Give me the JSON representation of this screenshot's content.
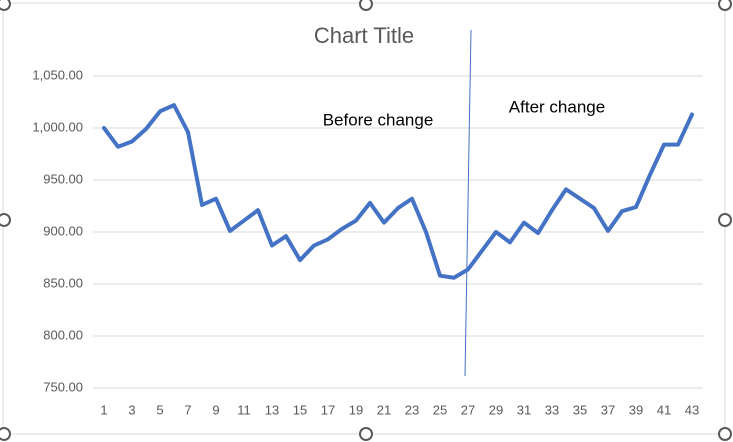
{
  "chart_data": {
    "type": "line",
    "title": "Chart Title",
    "categories": [
      1,
      null,
      3,
      null,
      5,
      null,
      7,
      null,
      9,
      null,
      11,
      null,
      13,
      null,
      15,
      null,
      17,
      null,
      19,
      null,
      21,
      null,
      23,
      null,
      25,
      null,
      27,
      null,
      29,
      null,
      31,
      null,
      33,
      null,
      35,
      null,
      37,
      null,
      39,
      null,
      41,
      null,
      43
    ],
    "series": [
      {
        "color": "#4472c4",
        "values": [
          1000,
          982,
          987,
          999,
          1016,
          1022,
          996,
          926,
          932,
          901,
          911,
          921,
          887,
          896,
          873,
          887,
          893,
          903,
          911,
          928,
          909,
          923,
          932,
          900,
          858,
          856,
          864,
          882,
          900,
          890,
          909,
          899,
          921,
          941,
          932,
          923,
          901,
          920,
          924,
          955,
          984,
          984,
          1013
        ]
      }
    ],
    "ylim": [
      750,
      1050
    ],
    "yticks": [
      {
        "value": 750,
        "label": "750.00"
      },
      {
        "value": 800,
        "label": "800.00"
      },
      {
        "value": 850,
        "label": "850.00"
      },
      {
        "value": 900,
        "label": "900.00"
      },
      {
        "value": 950,
        "label": "950.00"
      },
      {
        "value": 1000,
        "label": "1,000.00"
      },
      {
        "value": 1050,
        "label": "1,050.00"
      }
    ],
    "grid": true,
    "annotations": [
      "Before change",
      "After change"
    ]
  }
}
